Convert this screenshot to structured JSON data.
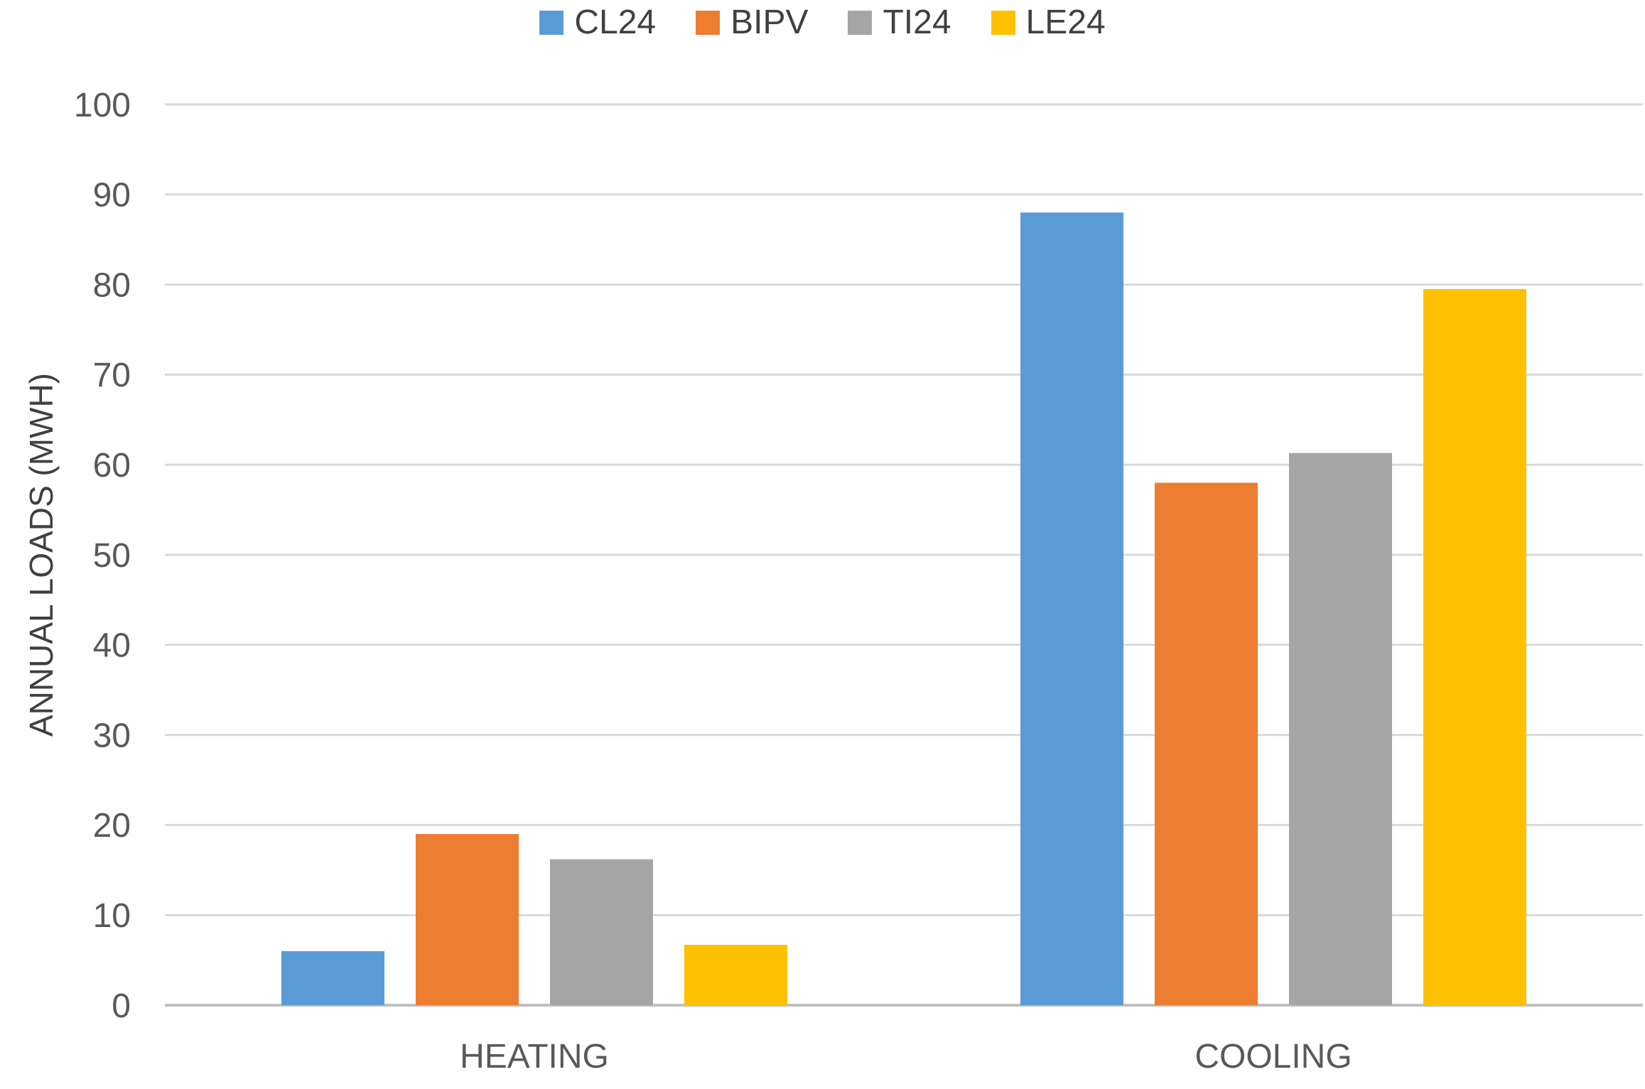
{
  "chart_data": {
    "type": "bar",
    "title": "",
    "categories": [
      "HEATING",
      "COOLING"
    ],
    "series": [
      {
        "name": "CL24",
        "color": "#5B9BD5",
        "values": [
          6,
          88
        ]
      },
      {
        "name": "BIPV",
        "color": "#ED7D31",
        "values": [
          19,
          58
        ]
      },
      {
        "name": "TI24",
        "color": "#A5A5A5",
        "values": [
          16.2,
          61.3
        ]
      },
      {
        "name": "LE24",
        "color": "#FFC000",
        "values": [
          6.7,
          79.5
        ]
      }
    ],
    "xlabel": "",
    "ylabel": "ANNUAL LOADS (MWH)",
    "ylim": [
      0,
      100
    ],
    "yticks": [
      0,
      10,
      20,
      30,
      40,
      50,
      60,
      70,
      80,
      90,
      100
    ],
    "grid": true,
    "legend_position": "top"
  },
  "colors": {
    "gridline": "#D9D9D9",
    "axis_line": "#BFBFBF",
    "tick_text": "#595959",
    "category_text": "#595959",
    "legend_text": "#404040",
    "axis_title_text": "#404040",
    "background": "#FFFFFF"
  }
}
